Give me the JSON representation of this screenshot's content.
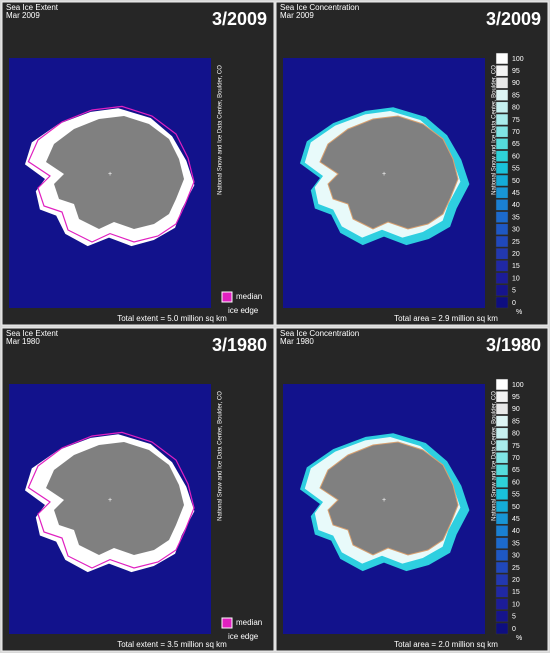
{
  "panels": [
    {
      "title": "Sea Ice Extent",
      "subtitle": "Mar 2009",
      "date": "3/2009",
      "credit": "National Snow and Ice Data Center, Boulder, CO",
      "footer": "Total extent = 5.0 million sq km",
      "legend": [
        "median",
        "ice edge"
      ]
    },
    {
      "title": "Sea Ice Concentration",
      "subtitle": "Mar 2009",
      "date": "3/2009",
      "credit": "National Snow and Ice Data Center, Boulder, CO",
      "footer": "Total area = 2.9 million sq km",
      "scale": [
        "100",
        "95",
        "90",
        "85",
        "80",
        "75",
        "70",
        "65",
        "60",
        "55",
        "50",
        "45",
        "40",
        "35",
        "30",
        "25",
        "20",
        "15",
        "10",
        "5",
        "0"
      ],
      "unit": "%"
    },
    {
      "title": "Sea Ice Extent",
      "subtitle": "Mar 1980",
      "date": "3/1980",
      "credit": "National Snow and Ice Data Center, Boulder, CO",
      "footer": "Total extent = 3.5 million sq km",
      "legend": [
        "median",
        "ice edge"
      ]
    },
    {
      "title": "Sea Ice Concentration",
      "subtitle": "Mar 1980",
      "date": "3/1980",
      "credit": "National Snow and Ice Data Center, Boulder, CO",
      "footer": "Total area = 2.0 million sq km",
      "scale": [
        "100",
        "95",
        "90",
        "85",
        "80",
        "75",
        "70",
        "65",
        "60",
        "55",
        "50",
        "45",
        "40",
        "35",
        "30",
        "25",
        "20",
        "15",
        "10",
        "5",
        "0"
      ],
      "unit": "%"
    }
  ]
}
